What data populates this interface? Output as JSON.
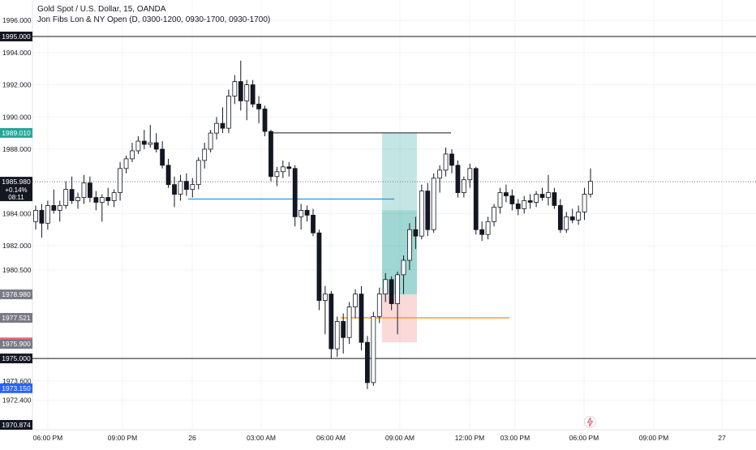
{
  "header": {
    "symbol_line": "Gold Spot / U.S. Dollar, 15, OANDA",
    "indicator_line": "Jon Fibs Lon & NY Open (D, 0300-1200, 0930-1700, 0930-1700)"
  },
  "chart_data": {
    "type": "candlestick",
    "y_axis": {
      "ticks": [
        "1996.000",
        "1994.000",
        "1992.000",
        "1990.000",
        "1988.000",
        "1984.000",
        "1982.000",
        "1980.500",
        "1973.600",
        "1972.400"
      ],
      "tick_values": [
        1996.0,
        1994.0,
        1992.0,
        1990.0,
        1988.0,
        1984.0,
        1982.0,
        1980.5,
        1973.6,
        1972.4
      ],
      "range": [
        1970.874,
        1995.0
      ]
    },
    "x_axis": {
      "labels": [
        "06:00 PM",
        "09:00 PM",
        "26",
        "03:00 AM",
        "06:00 AM",
        "09:00 AM",
        "12:00 PM",
        "03:00 PM",
        "06:00 PM",
        "09:00 PM",
        "27"
      ]
    },
    "price_tags": [
      {
        "label": "1995.000",
        "value": 1995.0,
        "color": "#131722"
      },
      {
        "label": "1989.010",
        "value": 1989.01,
        "color": "#26a69a"
      },
      {
        "label": "1985.980",
        "value": 1985.98,
        "color": "#131722",
        "extra": [
          "+0.14%",
          "08:11"
        ]
      },
      {
        "label": "1978.980",
        "value": 1978.98,
        "color": "#787b86"
      },
      {
        "label": "1977.521",
        "value": 1977.521,
        "color": "#787b86"
      },
      {
        "label": "1976.000",
        "value": 1976.0,
        "color": "#e57373"
      },
      {
        "label": "1975.900",
        "value": 1975.9,
        "color": "#787b86"
      },
      {
        "label": "1975.000",
        "value": 1975.0,
        "color": "#131722"
      },
      {
        "label": "1973.150",
        "value": 1973.15,
        "color": "#2962ff"
      },
      {
        "label": "1970.874",
        "value": 1970.874,
        "color": "#131722"
      }
    ],
    "lines": [
      {
        "name": "resistance-1995",
        "value": 1995.0,
        "color": "#131722"
      },
      {
        "name": "support-1975",
        "value": 1975.0,
        "color": "#131722"
      },
      {
        "name": "last-price-dotted",
        "value": 1985.98,
        "color": "#787b86"
      }
    ],
    "candles": [
      [
        1983.5,
        1984.5,
        1983.0,
        1984.2
      ],
      [
        1984.2,
        1984.6,
        1982.5,
        1983.4
      ],
      [
        1983.4,
        1984.8,
        1983.0,
        1984.5
      ],
      [
        1984.5,
        1985.5,
        1984.0,
        1984.2
      ],
      [
        1984.2,
        1984.8,
        1983.5,
        1984.5
      ],
      [
        1984.5,
        1986.0,
        1984.3,
        1985.5
      ],
      [
        1985.5,
        1986.3,
        1984.6,
        1984.8
      ],
      [
        1984.8,
        1985.3,
        1984.3,
        1985.0
      ],
      [
        1985.0,
        1986.4,
        1984.6,
        1985.9
      ],
      [
        1985.9,
        1986.3,
        1984.7,
        1985.0
      ],
      [
        1985.0,
        1985.4,
        1984.2,
        1984.7
      ],
      [
        1984.7,
        1985.2,
        1983.5,
        1985.0
      ],
      [
        1985.0,
        1985.6,
        1984.5,
        1984.8
      ],
      [
        1984.8,
        1985.5,
        1984.4,
        1985.3
      ],
      [
        1985.3,
        1987.2,
        1984.8,
        1986.8
      ],
      [
        1986.8,
        1987.6,
        1986.5,
        1987.4
      ],
      [
        1987.4,
        1988.4,
        1987.2,
        1987.9
      ],
      [
        1987.9,
        1988.8,
        1987.7,
        1988.5
      ],
      [
        1988.5,
        1989.2,
        1988.0,
        1988.3
      ],
      [
        1988.3,
        1989.5,
        1988.1,
        1988.4
      ],
      [
        1988.4,
        1989.0,
        1987.8,
        1988.0
      ],
      [
        1988.0,
        1988.5,
        1986.8,
        1987.0
      ],
      [
        1987.0,
        1987.4,
        1985.6,
        1985.8
      ],
      [
        1985.8,
        1986.3,
        1984.4,
        1985.2
      ],
      [
        1985.2,
        1986.4,
        1984.8,
        1986.0
      ],
      [
        1986.0,
        1986.5,
        1985.1,
        1985.5
      ],
      [
        1985.5,
        1986.2,
        1985.0,
        1985.8
      ],
      [
        1985.8,
        1987.5,
        1985.5,
        1987.3
      ],
      [
        1987.3,
        1988.4,
        1986.8,
        1988.0
      ],
      [
        1988.0,
        1989.2,
        1987.8,
        1989.0
      ],
      [
        1989.0,
        1990.0,
        1988.6,
        1989.6
      ],
      [
        1989.6,
        1990.6,
        1989.0,
        1989.3
      ],
      [
        1989.3,
        1991.7,
        1989.0,
        1991.3
      ],
      [
        1991.3,
        1992.6,
        1990.8,
        1992.2
      ],
      [
        1992.2,
        1993.5,
        1990.4,
        1991.0
      ],
      [
        1991.0,
        1992.3,
        1989.8,
        1992.0
      ],
      [
        1992.0,
        1992.3,
        1990.6,
        1990.8
      ],
      [
        1990.8,
        1991.3,
        1989.6,
        1990.5
      ],
      [
        1990.5,
        1990.7,
        1988.8,
        1989.1
      ],
      [
        1989.1,
        1989.2,
        1986.0,
        1986.3
      ],
      [
        1986.3,
        1986.9,
        1985.7,
        1986.6
      ],
      [
        1986.6,
        1987.3,
        1986.2,
        1986.9
      ],
      [
        1986.9,
        1987.2,
        1986.3,
        1986.8
      ],
      [
        1986.8,
        1987.0,
        1983.2,
        1983.8
      ],
      [
        1983.8,
        1984.6,
        1983.0,
        1984.2
      ],
      [
        1984.2,
        1984.5,
        1983.5,
        1983.9
      ],
      [
        1983.9,
        1984.3,
        1982.6,
        1982.8
      ],
      [
        1982.8,
        1983.0,
        1978.0,
        1978.6
      ],
      [
        1978.6,
        1979.5,
        1976.5,
        1979.0
      ],
      [
        1979.0,
        1979.2,
        1975.0,
        1975.6
      ],
      [
        1975.6,
        1977.6,
        1975.1,
        1977.3
      ],
      [
        1977.3,
        1977.8,
        1975.3,
        1976.3
      ],
      [
        1976.3,
        1978.5,
        1975.9,
        1978.2
      ],
      [
        1978.2,
        1979.3,
        1977.5,
        1979.0
      ],
      [
        1979.0,
        1979.5,
        1975.5,
        1976.0
      ],
      [
        1976.0,
        1976.4,
        1973.1,
        1973.5
      ],
      [
        1973.5,
        1977.9,
        1973.3,
        1977.6
      ],
      [
        1977.6,
        1979.4,
        1977.2,
        1979.0
      ],
      [
        1979.0,
        1980.3,
        1978.5,
        1979.9
      ],
      [
        1979.9,
        1980.1,
        1978.0,
        1978.4
      ],
      [
        1978.4,
        1980.4,
        1976.5,
        1980.2
      ],
      [
        1980.2,
        1981.4,
        1979.0,
        1981.1
      ],
      [
        1981.1,
        1983.4,
        1980.5,
        1983.0
      ],
      [
        1983.0,
        1983.8,
        1981.8,
        1982.6
      ],
      [
        1982.6,
        1985.8,
        1982.4,
        1985.4
      ],
      [
        1985.4,
        1985.9,
        1982.6,
        1983.0
      ],
      [
        1983.0,
        1986.5,
        1982.8,
        1986.2
      ],
      [
        1986.2,
        1987.0,
        1985.3,
        1986.7
      ],
      [
        1986.7,
        1988.1,
        1986.3,
        1987.7
      ],
      [
        1987.7,
        1988.0,
        1986.5,
        1987.0
      ],
      [
        1987.0,
        1987.3,
        1985.0,
        1985.3
      ],
      [
        1985.3,
        1986.3,
        1985.0,
        1986.1
      ],
      [
        1986.1,
        1987.1,
        1985.6,
        1986.8
      ],
      [
        1986.8,
        1986.9,
        1982.7,
        1983.0
      ],
      [
        1983.0,
        1983.5,
        1982.3,
        1982.7
      ],
      [
        1982.7,
        1983.8,
        1982.4,
        1983.5
      ],
      [
        1983.5,
        1984.6,
        1983.2,
        1984.4
      ],
      [
        1984.4,
        1985.6,
        1984.0,
        1985.3
      ],
      [
        1985.3,
        1985.8,
        1984.7,
        1985.1
      ],
      [
        1985.1,
        1985.5,
        1984.2,
        1984.6
      ],
      [
        1984.6,
        1984.9,
        1983.9,
        1984.3
      ],
      [
        1984.3,
        1985.1,
        1984.0,
        1984.8
      ],
      [
        1984.8,
        1985.2,
        1984.3,
        1984.7
      ],
      [
        1984.7,
        1985.4,
        1984.4,
        1985.2
      ],
      [
        1985.2,
        1985.6,
        1984.8,
        1985.0
      ],
      [
        1985.0,
        1986.4,
        1984.5,
        1985.3
      ],
      [
        1985.3,
        1985.6,
        1984.3,
        1984.5
      ],
      [
        1984.5,
        1984.9,
        1982.8,
        1983.0
      ],
      [
        1983.0,
        1984.1,
        1982.8,
        1983.8
      ],
      [
        1983.8,
        1984.3,
        1983.4,
        1983.6
      ],
      [
        1983.6,
        1984.5,
        1983.3,
        1984.1
      ],
      [
        1984.1,
        1985.6,
        1983.6,
        1985.2
      ],
      [
        1985.2,
        1986.8,
        1985.0,
        1986.0
      ]
    ]
  },
  "colors": {
    "bull_body": "#ffffff",
    "bull_border": "#131722",
    "bear_body": "#131722",
    "profit_zone": "rgba(38,166,154,0.28)",
    "stop_zone": "rgba(239,83,80,0.22)",
    "blue_line": "#2196f3",
    "orange_line": "#f59f27",
    "grid": "#f0f3fa"
  }
}
